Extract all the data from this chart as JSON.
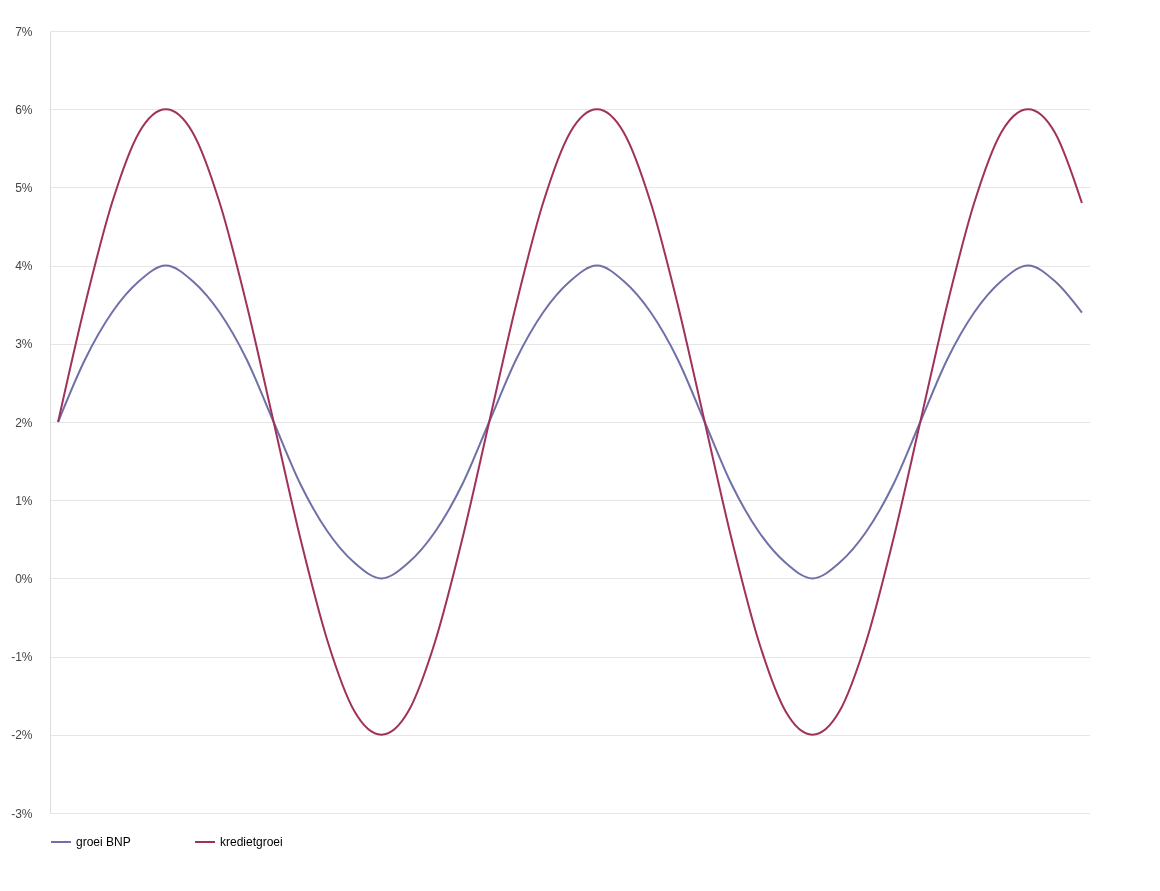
{
  "chart_data": {
    "type": "line",
    "categories": [
      null,
      null,
      null,
      null,
      null,
      null,
      null,
      null,
      null,
      null,
      null,
      null,
      null,
      null,
      null,
      null,
      null,
      null,
      null,
      null,
      null,
      null,
      null,
      null,
      null,
      null,
      null,
      null,
      null,
      null,
      null,
      null,
      null,
      null,
      null,
      null,
      null,
      null,
      null
    ],
    "series": [
      {
        "name": "groei BNP",
        "color": "#6f70a8",
        "values": [
          2,
          2.8,
          3.4,
          3.8,
          4,
          3.8,
          3.4,
          2.8,
          2,
          1.2,
          0.6,
          0.2,
          0,
          0.2,
          0.6,
          1.2,
          2,
          2.8,
          3.4,
          3.8,
          4,
          3.8,
          3.4,
          2.8,
          2,
          1.2,
          0.6,
          0.2,
          0,
          0.2,
          0.6,
          1.2,
          2,
          2.8,
          3.4,
          3.8,
          4,
          3.8,
          3.4
        ]
      },
      {
        "name": "kredietgroei",
        "color": "#a0315c",
        "values": [
          2,
          3.5,
          4.8,
          5.7,
          6,
          5.7,
          4.8,
          3.5,
          2,
          0.5,
          -0.8,
          -1.7,
          -2,
          -1.7,
          -0.8,
          0.5,
          2,
          3.5,
          4.8,
          5.7,
          6,
          5.7,
          4.8,
          3.5,
          2,
          0.5,
          -0.8,
          -1.7,
          -2,
          -1.7,
          -0.8,
          0.5,
          2,
          3.5,
          4.8,
          5.7,
          6,
          5.7,
          4.8
        ]
      }
    ],
    "ylim": [
      -3,
      7
    ],
    "yticks": [
      {
        "value": -3,
        "label": "-3%"
      },
      {
        "value": -2,
        "label": "-2%"
      },
      {
        "value": -1,
        "label": "-1%"
      },
      {
        "value": 0,
        "label": "0%"
      },
      {
        "value": 1,
        "label": "1%"
      },
      {
        "value": 2,
        "label": "2%"
      },
      {
        "value": 3,
        "label": "3%"
      },
      {
        "value": 4,
        "label": "4%"
      },
      {
        "value": 5,
        "label": "5%"
      },
      {
        "value": 6,
        "label": "6%"
      },
      {
        "value": 7,
        "label": "7%"
      }
    ],
    "tick_labels": "y",
    "grid": "y",
    "legend": "bottom",
    "line_style": "solid",
    "marker": "none"
  }
}
